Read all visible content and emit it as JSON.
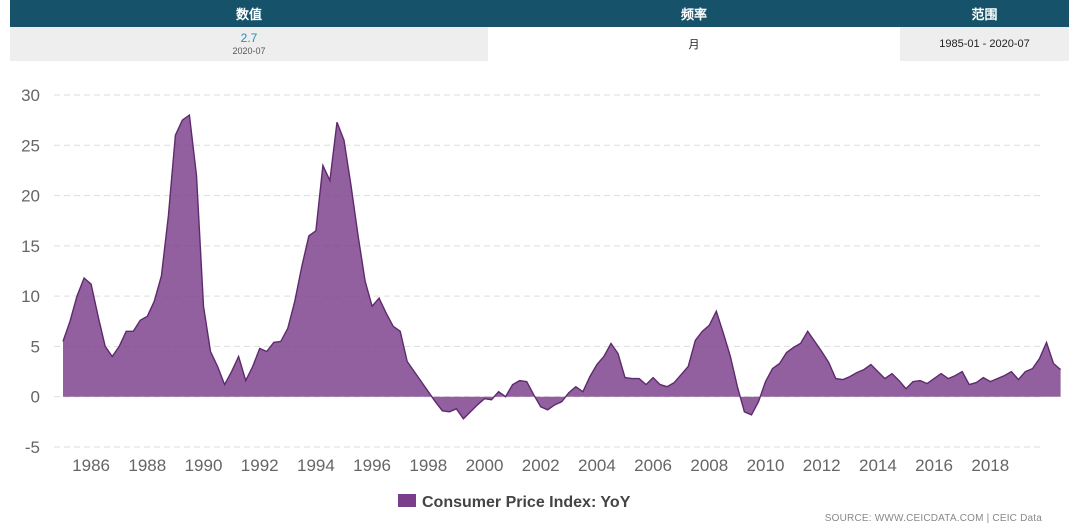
{
  "summary": {
    "headers": [
      "数值",
      "频率",
      "范围"
    ],
    "latest_value": "2.7",
    "latest_date": "2020-07",
    "frequency": "月",
    "range": "1985-01 - 2020-07"
  },
  "footer": {
    "source": "SOURCE: WWW.CEICDATA.COM | CEIC Data"
  },
  "colors": {
    "series": "#7a3d8a",
    "header_bg": "#16536b",
    "value_text": "#2b8bb3"
  },
  "chart_data": {
    "type": "area",
    "title": "",
    "xlabel": "",
    "ylabel": "",
    "ylim": [
      -5,
      30
    ],
    "yticks": [
      30,
      25,
      20,
      15,
      10,
      5,
      0,
      -5
    ],
    "xticks": [
      "1986",
      "1988",
      "1990",
      "1992",
      "1994",
      "1996",
      "1998",
      "2000",
      "2002",
      "2004",
      "2006",
      "2008",
      "2010",
      "2012",
      "2014",
      "2016",
      "2018"
    ],
    "xlim": [
      "1985-01",
      "2020-07"
    ],
    "grid": true,
    "legend": "bottom-center",
    "series": [
      {
        "name": "Consumer Price Index: YoY",
        "color": "#7a3d8a",
        "points": [
          [
            "1985-01",
            5.5
          ],
          [
            "1985-04",
            7.5
          ],
          [
            "1985-07",
            10.0
          ],
          [
            "1985-10",
            11.8
          ],
          [
            "1986-01",
            11.2
          ],
          [
            "1986-04",
            8.0
          ],
          [
            "1986-07",
            5.0
          ],
          [
            "1986-10",
            4.0
          ],
          [
            "1987-01",
            5.0
          ],
          [
            "1987-04",
            6.5
          ],
          [
            "1987-07",
            6.5
          ],
          [
            "1987-10",
            7.6
          ],
          [
            "1988-01",
            8.0
          ],
          [
            "1988-04",
            9.5
          ],
          [
            "1988-07",
            12.0
          ],
          [
            "1988-10",
            18.0
          ],
          [
            "1989-01",
            26.0
          ],
          [
            "1989-04",
            27.5
          ],
          [
            "1989-07",
            28.0
          ],
          [
            "1989-10",
            22.0
          ],
          [
            "1990-01",
            9.0
          ],
          [
            "1990-04",
            4.5
          ],
          [
            "1990-07",
            3.0
          ],
          [
            "1990-10",
            1.2
          ],
          [
            "1991-01",
            2.5
          ],
          [
            "1991-04",
            4.0
          ],
          [
            "1991-07",
            1.6
          ],
          [
            "1991-10",
            3.0
          ],
          [
            "1992-01",
            4.8
          ],
          [
            "1992-04",
            4.5
          ],
          [
            "1992-07",
            5.4
          ],
          [
            "1992-10",
            5.5
          ],
          [
            "1993-01",
            6.8
          ],
          [
            "1993-04",
            9.5
          ],
          [
            "1993-07",
            13.0
          ],
          [
            "1993-10",
            16.0
          ],
          [
            "1994-01",
            16.5
          ],
          [
            "1994-04",
            23.0
          ],
          [
            "1994-07",
            21.5
          ],
          [
            "1994-10",
            27.3
          ],
          [
            "1995-01",
            25.5
          ],
          [
            "1995-04",
            21.0
          ],
          [
            "1995-07",
            16.0
          ],
          [
            "1995-10",
            11.5
          ],
          [
            "1996-01",
            9.0
          ],
          [
            "1996-04",
            9.8
          ],
          [
            "1996-07",
            8.3
          ],
          [
            "1996-10",
            7.0
          ],
          [
            "1997-01",
            6.5
          ],
          [
            "1997-04",
            3.5
          ],
          [
            "1997-07",
            2.5
          ],
          [
            "1997-10",
            1.5
          ],
          [
            "1998-01",
            0.5
          ],
          [
            "1998-04",
            -0.5
          ],
          [
            "1998-07",
            -1.4
          ],
          [
            "1998-10",
            -1.5
          ],
          [
            "1999-01",
            -1.2
          ],
          [
            "1999-04",
            -2.2
          ],
          [
            "1999-07",
            -1.5
          ],
          [
            "1999-10",
            -0.8
          ],
          [
            "2000-01",
            -0.2
          ],
          [
            "2000-04",
            -0.3
          ],
          [
            "2000-07",
            0.5
          ],
          [
            "2000-10",
            0.0
          ],
          [
            "2001-01",
            1.2
          ],
          [
            "2001-04",
            1.6
          ],
          [
            "2001-07",
            1.5
          ],
          [
            "2001-10",
            0.2
          ],
          [
            "2002-01",
            -1.0
          ],
          [
            "2002-04",
            -1.3
          ],
          [
            "2002-07",
            -0.8
          ],
          [
            "2002-10",
            -0.5
          ],
          [
            "2003-01",
            0.4
          ],
          [
            "2003-04",
            1.0
          ],
          [
            "2003-07",
            0.5
          ],
          [
            "2003-10",
            2.0
          ],
          [
            "2004-01",
            3.2
          ],
          [
            "2004-04",
            4.0
          ],
          [
            "2004-07",
            5.3
          ],
          [
            "2004-10",
            4.3
          ],
          [
            "2005-01",
            1.9
          ],
          [
            "2005-04",
            1.8
          ],
          [
            "2005-07",
            1.8
          ],
          [
            "2005-10",
            1.2
          ],
          [
            "2006-01",
            1.9
          ],
          [
            "2006-04",
            1.2
          ],
          [
            "2006-07",
            1.0
          ],
          [
            "2006-10",
            1.4
          ],
          [
            "2007-01",
            2.2
          ],
          [
            "2007-04",
            3.0
          ],
          [
            "2007-07",
            5.6
          ],
          [
            "2007-10",
            6.5
          ],
          [
            "2008-01",
            7.1
          ],
          [
            "2008-04",
            8.5
          ],
          [
            "2008-07",
            6.3
          ],
          [
            "2008-10",
            4.0
          ],
          [
            "2009-01",
            1.0
          ],
          [
            "2009-04",
            -1.5
          ],
          [
            "2009-07",
            -1.8
          ],
          [
            "2009-10",
            -0.5
          ],
          [
            "2010-01",
            1.5
          ],
          [
            "2010-04",
            2.8
          ],
          [
            "2010-07",
            3.3
          ],
          [
            "2010-10",
            4.4
          ],
          [
            "2011-01",
            4.9
          ],
          [
            "2011-04",
            5.3
          ],
          [
            "2011-07",
            6.5
          ],
          [
            "2011-10",
            5.5
          ],
          [
            "2012-01",
            4.5
          ],
          [
            "2012-04",
            3.4
          ],
          [
            "2012-07",
            1.8
          ],
          [
            "2012-10",
            1.7
          ],
          [
            "2013-01",
            2.0
          ],
          [
            "2013-04",
            2.4
          ],
          [
            "2013-07",
            2.7
          ],
          [
            "2013-10",
            3.2
          ],
          [
            "2014-01",
            2.5
          ],
          [
            "2014-04",
            1.8
          ],
          [
            "2014-07",
            2.3
          ],
          [
            "2014-10",
            1.6
          ],
          [
            "2015-01",
            0.8
          ],
          [
            "2015-04",
            1.5
          ],
          [
            "2015-07",
            1.6
          ],
          [
            "2015-10",
            1.3
          ],
          [
            "2016-01",
            1.8
          ],
          [
            "2016-04",
            2.3
          ],
          [
            "2016-07",
            1.8
          ],
          [
            "2016-10",
            2.1
          ],
          [
            "2017-01",
            2.5
          ],
          [
            "2017-04",
            1.2
          ],
          [
            "2017-07",
            1.4
          ],
          [
            "2017-10",
            1.9
          ],
          [
            "2018-01",
            1.5
          ],
          [
            "2018-04",
            1.8
          ],
          [
            "2018-07",
            2.1
          ],
          [
            "2018-10",
            2.5
          ],
          [
            "2019-01",
            1.7
          ],
          [
            "2019-04",
            2.5
          ],
          [
            "2019-07",
            2.8
          ],
          [
            "2019-10",
            3.8
          ],
          [
            "2020-01",
            5.4
          ],
          [
            "2020-04",
            3.3
          ],
          [
            "2020-07",
            2.7
          ]
        ]
      }
    ]
  }
}
